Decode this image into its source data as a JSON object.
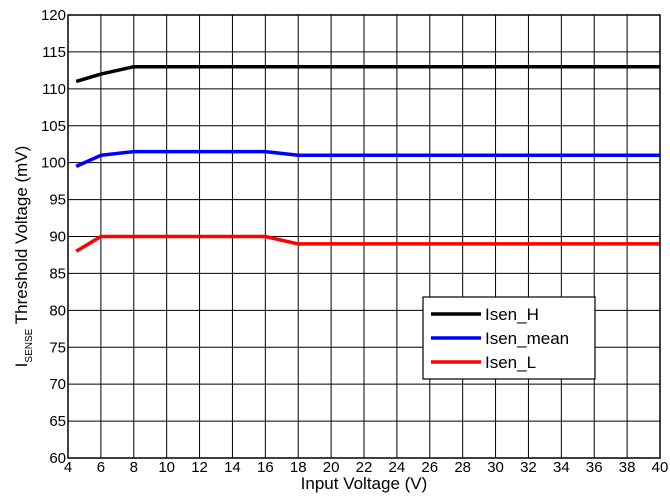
{
  "chart_data": {
    "type": "line",
    "title": "",
    "xlabel": "Input Voltage (V)",
    "ylabel": {
      "prefix": "I",
      "subscript": "SENSE",
      "suffix": " Threshold Voltage (mV)"
    },
    "xlim": [
      4,
      40
    ],
    "ylim": [
      60,
      120
    ],
    "x_ticks": [
      4,
      6,
      8,
      10,
      12,
      14,
      16,
      18,
      20,
      22,
      24,
      26,
      28,
      30,
      32,
      34,
      36,
      38,
      40
    ],
    "y_ticks": [
      60,
      65,
      70,
      75,
      80,
      85,
      90,
      95,
      100,
      105,
      110,
      115,
      120
    ],
    "grid": true,
    "legend_position": "lower-right",
    "series": [
      {
        "name": "Isen_H",
        "color": "#000000",
        "x": [
          4.5,
          6,
          8,
          10,
          12,
          14,
          16,
          18,
          20,
          22,
          24,
          26,
          28,
          30,
          32,
          34,
          36,
          38,
          40
        ],
        "y": [
          111,
          112,
          113,
          113,
          113,
          113,
          113,
          113,
          113,
          113,
          113,
          113,
          113,
          113,
          113,
          113,
          113,
          113,
          113
        ]
      },
      {
        "name": "Isen_mean",
        "color": "#0000ff",
        "x": [
          4.5,
          6,
          8,
          10,
          12,
          14,
          16,
          18,
          20,
          22,
          24,
          26,
          28,
          30,
          32,
          34,
          36,
          38,
          40
        ],
        "y": [
          99.5,
          101,
          101.5,
          101.5,
          101.5,
          101.5,
          101.5,
          101,
          101,
          101,
          101,
          101,
          101,
          101,
          101,
          101,
          101,
          101,
          101
        ]
      },
      {
        "name": "Isen_L",
        "color": "#ff0000",
        "x": [
          4.5,
          6,
          8,
          10,
          12,
          14,
          16,
          18,
          20,
          22,
          24,
          26,
          28,
          30,
          32,
          34,
          36,
          38,
          40
        ],
        "y": [
          88,
          90,
          90,
          90,
          90,
          90,
          90,
          89,
          89,
          89,
          89,
          89,
          89,
          89,
          89,
          89,
          89,
          89,
          89
        ]
      }
    ]
  }
}
